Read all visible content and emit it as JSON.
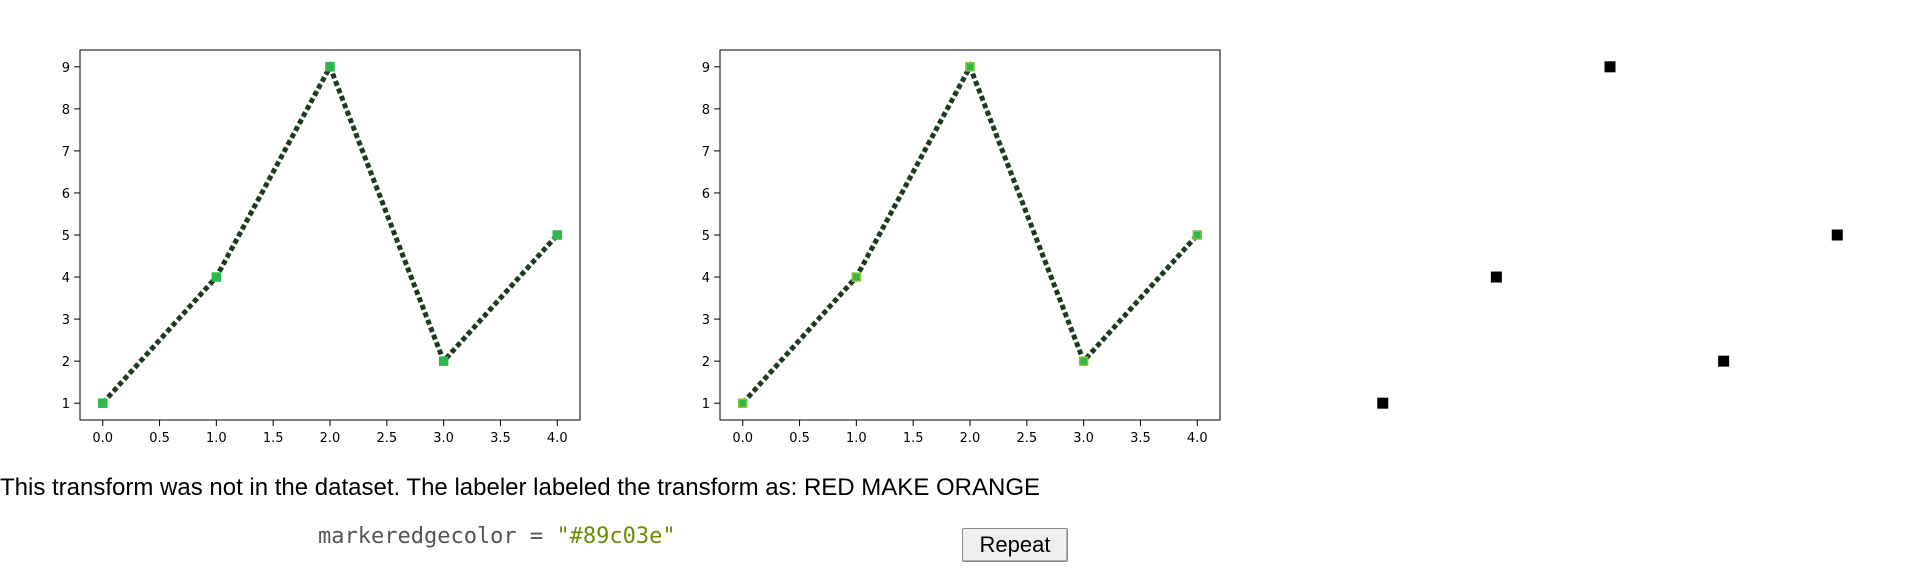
{
  "chart_data": [
    {
      "type": "line",
      "x": [
        0,
        1,
        2,
        3,
        4
      ],
      "y": [
        1,
        4,
        9,
        2,
        5
      ],
      "xlim": [
        -0.2,
        4.2
      ],
      "ylim": [
        0.6,
        9.4
      ],
      "xticks": [
        0.0,
        0.5,
        1.0,
        1.5,
        2.0,
        2.5,
        3.0,
        3.5,
        4.0
      ],
      "xtick_labels": [
        "0.0",
        "0.5",
        "1.0",
        "1.5",
        "2.0",
        "2.5",
        "3.0",
        "3.5",
        "4.0"
      ],
      "yticks": [
        1,
        2,
        3,
        4,
        5,
        6,
        7,
        8,
        9
      ],
      "ytick_labels": [
        "1",
        "2",
        "3",
        "4",
        "5",
        "6",
        "7",
        "8",
        "9"
      ],
      "line_style": "dotted",
      "line_color": "#1c3a1f",
      "marker": "square",
      "marker_face_color": "#2db84a",
      "marker_edge_color": "#2db84a",
      "axes_visible": true,
      "grid": false,
      "title": "",
      "xlabel": "",
      "ylabel": ""
    },
    {
      "type": "line",
      "x": [
        0,
        1,
        2,
        3,
        4
      ],
      "y": [
        1,
        4,
        9,
        2,
        5
      ],
      "xlim": [
        -0.2,
        4.2
      ],
      "ylim": [
        0.6,
        9.4
      ],
      "xticks": [
        0.0,
        0.5,
        1.0,
        1.5,
        2.0,
        2.5,
        3.0,
        3.5,
        4.0
      ],
      "xtick_labels": [
        "0.0",
        "0.5",
        "1.0",
        "1.5",
        "2.0",
        "2.5",
        "3.0",
        "3.5",
        "4.0"
      ],
      "yticks": [
        1,
        2,
        3,
        4,
        5,
        6,
        7,
        8,
        9
      ],
      "ytick_labels": [
        "1",
        "2",
        "3",
        "4",
        "5",
        "6",
        "7",
        "8",
        "9"
      ],
      "line_style": "dotted",
      "line_color": "#1c3a1f",
      "marker": "square",
      "marker_face_color": "#2db84a",
      "marker_edge_color": "#89c03e",
      "axes_visible": true,
      "grid": false,
      "title": "",
      "xlabel": "",
      "ylabel": ""
    },
    {
      "type": "scatter",
      "x": [
        0,
        1,
        2,
        3,
        4
      ],
      "y": [
        1,
        4,
        9,
        2,
        5
      ],
      "xlim": [
        -0.2,
        4.2
      ],
      "ylim": [
        0.6,
        9.4
      ],
      "marker": "square",
      "marker_face_color": "#000000",
      "marker_edge_color": "#000000",
      "axes_visible": false,
      "grid": false,
      "title": "",
      "xlabel": "",
      "ylabel": ""
    }
  ],
  "message": "This transform was not in the dataset. The labeler labeled the transform as: RED MAKE ORANGE",
  "code": {
    "key": "markeredgecolor",
    "operator": " = ",
    "value": "\"#89c03e\""
  },
  "repeat_button_label": "Repeat"
}
